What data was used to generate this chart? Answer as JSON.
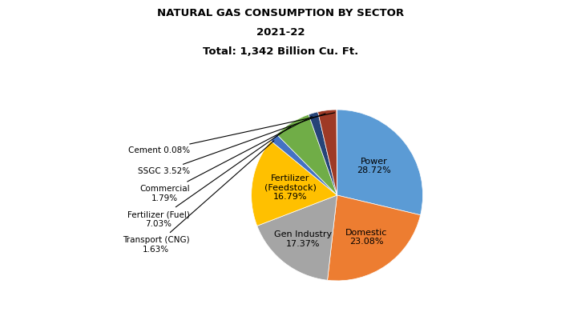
{
  "title_line1": "NATURAL GAS CONSUMPTION BY SECTOR",
  "title_line2": "2021-22",
  "title_line3": "Total: 1,342 Billion Cu. Ft.",
  "values": [
    28.72,
    23.08,
    17.37,
    16.79,
    1.63,
    7.03,
    1.79,
    3.52,
    0.08
  ],
  "colors": [
    "#5B9BD5",
    "#ED7D31",
    "#A5A5A5",
    "#FFC000",
    "#4472C4",
    "#70AD47",
    "#264478",
    "#9E3A26",
    "#595959"
  ],
  "large_labels": {
    "0": "Power\n28.72%",
    "1": "Domestic\n23.08%",
    "2": "Gen Industry\n17.37%",
    "3": "Fertilizer\n(Feedstock)\n16.79%"
  },
  "small_labels": {
    "8": "Cement 0.08%",
    "7": "SSGC 3.52%",
    "6": "Commercial\n1.79%",
    "5": "Fertilizer (Fuel)\n7.03%",
    "4": "Transport (CNG)\n1.63%"
  },
  "startangle": 90,
  "background_color": "#FFFFFF"
}
